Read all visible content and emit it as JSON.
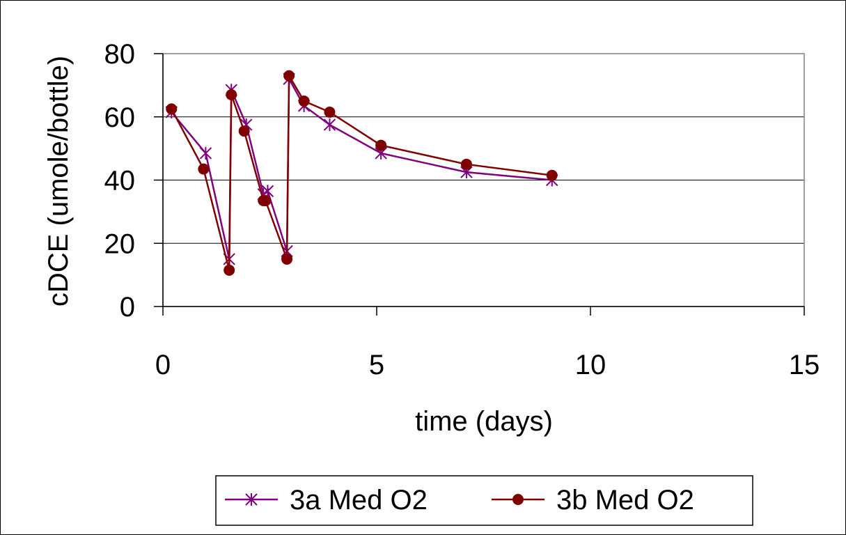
{
  "chart_data": {
    "type": "line",
    "title": "",
    "xlabel": "time (days)",
    "ylabel": "cDCE (umole/bottle)",
    "xlim": [
      0,
      15
    ],
    "ylim": [
      0,
      80
    ],
    "x_ticks": [
      0,
      5,
      10,
      15
    ],
    "y_ticks": [
      0,
      20,
      40,
      60,
      80
    ],
    "grid": "horizontal",
    "legend_position": "bottom",
    "series": [
      {
        "name": "3a Med O2",
        "color": "#800080",
        "marker": "star",
        "x": [
          0.2,
          1.0,
          1.55,
          1.6,
          1.95,
          2.35,
          2.45,
          2.9,
          2.95,
          3.3,
          3.9,
          5.1,
          7.1,
          9.1
        ],
        "y": [
          61.5,
          48.5,
          15,
          68.5,
          57.5,
          35.5,
          36.5,
          17.5,
          72,
          63.5,
          57.5,
          48.5,
          42.5,
          40
        ]
      },
      {
        "name": "3b Med O2",
        "color": "#800000",
        "marker": "circle",
        "x": [
          0.2,
          0.95,
          1.55,
          1.6,
          1.9,
          2.35,
          2.4,
          2.9,
          2.95,
          3.3,
          3.9,
          5.1,
          7.1,
          9.1
        ],
        "y": [
          62.5,
          43.5,
          11.5,
          67,
          55.5,
          33.5,
          33.5,
          15,
          73,
          65,
          61.5,
          51,
          45,
          41.5
        ]
      }
    ]
  }
}
